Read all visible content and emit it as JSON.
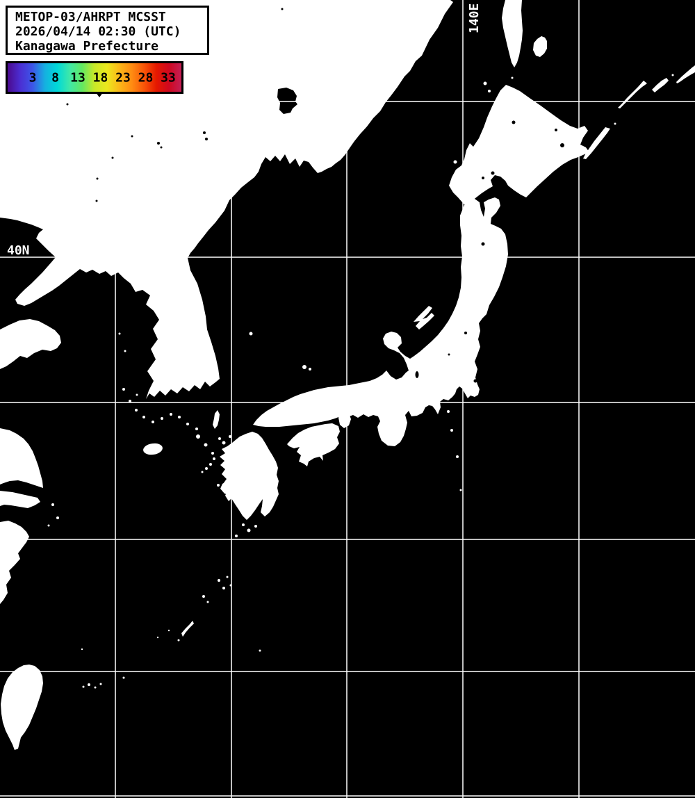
{
  "header": {
    "line1": "METOP-03/AHRPT MCSST",
    "line2": "2026/04/14 02:30 (UTC)",
    "line3": "Kanagawa Prefecture"
  },
  "colorbar": {
    "tick_labels": [
      "3",
      "8",
      "13",
      "18",
      "23",
      "28",
      "33"
    ],
    "gradient_colors": [
      "#4b0a8e",
      "#4b2ed2",
      "#3d55e8",
      "#15b0e0",
      "#00d8d8",
      "#3fe8a8",
      "#62e862",
      "#c8e828",
      "#ece81e",
      "#fbb818",
      "#ff8c12",
      "#f85508",
      "#e51800",
      "#cf0820",
      "#c41f55"
    ],
    "marker_value": "18.5"
  },
  "map": {
    "labels": {
      "longitude": "140E",
      "latitude": "40N"
    },
    "colors": {
      "sea": "#000000",
      "land": "#ffffff",
      "gridline": "#ffffff",
      "label_text": "#ffffff"
    }
  }
}
